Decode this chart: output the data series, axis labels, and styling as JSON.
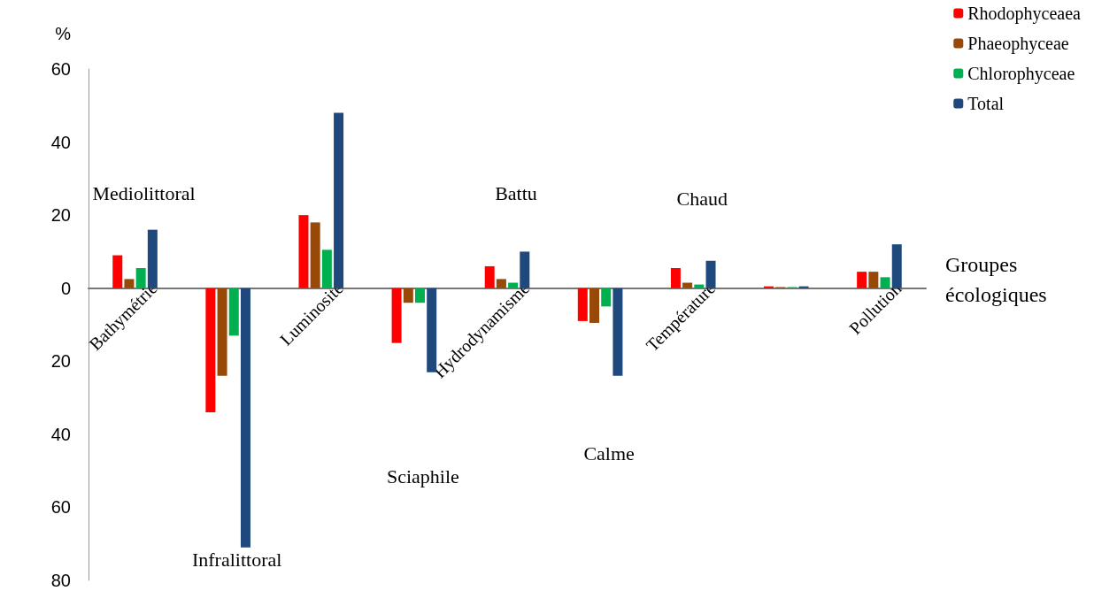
{
  "chart_data": {
    "type": "bar",
    "ylabel": "%",
    "xlabel": "Groupes écologiques",
    "categories": [
      "Bathymétrie",
      null,
      "Luminosité",
      null,
      "Hydrodynamisme",
      null,
      "Température",
      null,
      "Pollution"
    ],
    "series": [
      {
        "name": "Rhodophyceaea",
        "color": "#ff0000",
        "values": [
          9,
          -34,
          20,
          -15,
          6,
          -9,
          5.5,
          0.5,
          4.5
        ]
      },
      {
        "name": "Phaeophyceae",
        "color": "#984807",
        "values": [
          2.5,
          -24,
          18,
          -4,
          2.5,
          -9.5,
          1.5,
          0.3,
          4.5
        ]
      },
      {
        "name": "Chlorophyceae",
        "color": "#00b050",
        "values": [
          5.5,
          -13,
          10.5,
          -4,
          1.5,
          -5,
          1,
          0.3,
          3
        ]
      },
      {
        "name": "Total",
        "color": "#1f497d",
        "values": [
          16,
          -71,
          48,
          -23,
          10,
          -24,
          7.5,
          0.5,
          12
        ]
      }
    ],
    "ylim": [
      -80,
      60
    ],
    "yticks": [
      {
        "value": -80,
        "label": "80"
      },
      {
        "value": -60,
        "label": "60"
      },
      {
        "value": -40,
        "label": "40"
      },
      {
        "value": -20,
        "label": "20"
      },
      0,
      20,
      40,
      60
    ],
    "annotations": [
      "Mediolittoral",
      "Infralittoral",
      "Sciaphile",
      "Battu",
      "Calme",
      "Chaud"
    ],
    "grid": false,
    "legend": "top right"
  }
}
